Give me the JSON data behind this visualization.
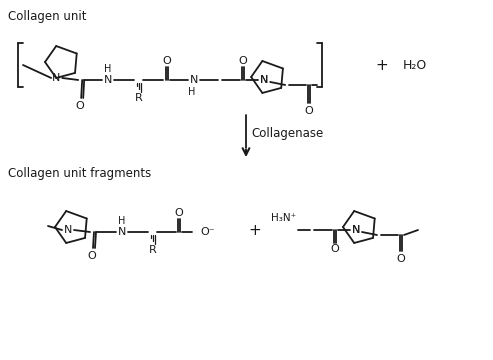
{
  "bg_color": "#ffffff",
  "line_color": "#1a1a1a",
  "text_color": "#1a1a1a",
  "title1": "Collagen unit",
  "title2": "Collagen unit fragments",
  "enzyme_label": "Collagenase",
  "lw": 1.3,
  "font_size": 8
}
